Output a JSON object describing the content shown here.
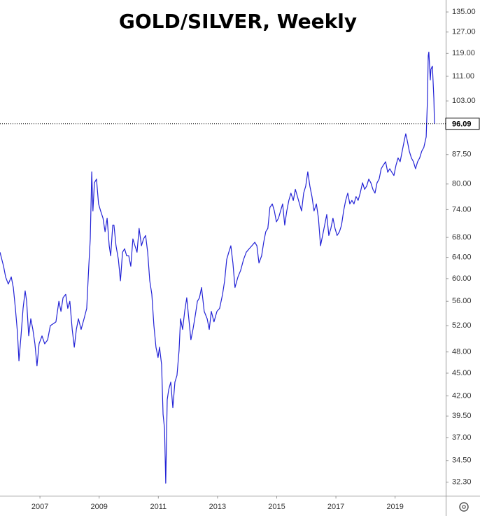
{
  "chart_data": {
    "type": "line",
    "title": "GOLD/SILVER, Weekly",
    "color": "#2323d6",
    "log_y": true,
    "x": [
      2005.65,
      2005.77,
      2005.84,
      2005.93,
      2006.03,
      2006.1,
      2006.17,
      2006.24,
      2006.29,
      2006.36,
      2006.43,
      2006.5,
      2006.55,
      2006.62,
      2006.69,
      2006.76,
      2006.83,
      2006.9,
      2006.97,
      2007.07,
      2007.16,
      2007.26,
      2007.35,
      2007.45,
      2007.54,
      2007.64,
      2007.71,
      2007.78,
      2007.87,
      2007.94,
      2008.01,
      2008.09,
      2008.16,
      2008.23,
      2008.3,
      2008.39,
      2008.49,
      2008.58,
      2008.65,
      2008.7,
      2008.75,
      2008.79,
      2008.84,
      2008.91,
      2008.98,
      2009.05,
      2009.13,
      2009.2,
      2009.27,
      2009.34,
      2009.39,
      2009.46,
      2009.5,
      2009.57,
      2009.65,
      2009.72,
      2009.79,
      2009.86,
      2009.93,
      2010.0,
      2010.07,
      2010.14,
      2010.21,
      2010.28,
      2010.35,
      2010.43,
      2010.5,
      2010.57,
      2010.64,
      2010.71,
      2010.78,
      2010.85,
      2010.92,
      2010.99,
      2011.04,
      2011.11,
      2011.16,
      2011.21,
      2011.25,
      2011.3,
      2011.35,
      2011.42,
      2011.49,
      2011.56,
      2011.63,
      2011.7,
      2011.75,
      2011.82,
      2011.89,
      2011.96,
      2012.03,
      2012.1,
      2012.17,
      2012.25,
      2012.32,
      2012.39,
      2012.46,
      2012.55,
      2012.65,
      2012.72,
      2012.79,
      2012.88,
      2012.98,
      2013.07,
      2013.17,
      2013.24,
      2013.31,
      2013.38,
      2013.45,
      2013.52,
      2013.59,
      2013.69,
      2013.78,
      2013.88,
      2013.97,
      2014.07,
      2014.16,
      2014.26,
      2014.33,
      2014.4,
      2014.49,
      2014.56,
      2014.63,
      2014.7,
      2014.77,
      2014.85,
      2014.92,
      2014.99,
      2015.06,
      2015.13,
      2015.2,
      2015.27,
      2015.34,
      2015.41,
      2015.48,
      2015.56,
      2015.63,
      2015.7,
      2015.77,
      2015.84,
      2015.91,
      2015.98,
      2016.05,
      2016.12,
      2016.19,
      2016.26,
      2016.34,
      2016.41,
      2016.48,
      2016.55,
      2016.62,
      2016.69,
      2016.76,
      2016.83,
      2016.9,
      2016.97,
      2017.04,
      2017.12,
      2017.19,
      2017.26,
      2017.33,
      2017.4,
      2017.47,
      2017.54,
      2017.61,
      2017.68,
      2017.75,
      2017.82,
      2017.9,
      2017.97,
      2018.04,
      2018.11,
      2018.18,
      2018.25,
      2018.32,
      2018.39,
      2018.46,
      2018.53,
      2018.6,
      2018.68,
      2018.75,
      2018.82,
      2018.89,
      2018.96,
      2019.03,
      2019.1,
      2019.17,
      2019.24,
      2019.31,
      2019.36,
      2019.41,
      2019.48,
      2019.55,
      2019.62,
      2019.69,
      2019.76,
      2019.83,
      2019.9,
      2019.97,
      2020.05,
      2020.09,
      2020.12,
      2020.14,
      2020.19,
      2020.21,
      2020.26,
      2020.31,
      2020.33
    ],
    "values": [
      65.0,
      62.3,
      60.3,
      59.0,
      60.3,
      58.4,
      54.8,
      50.9,
      46.7,
      50.4,
      54.8,
      57.8,
      56.0,
      50.4,
      53.1,
      51.4,
      49.2,
      46.0,
      49.2,
      50.4,
      49.2,
      49.8,
      52.0,
      52.3,
      52.6,
      56.0,
      54.3,
      56.6,
      57.2,
      54.8,
      56.0,
      51.4,
      48.7,
      51.4,
      53.1,
      51.4,
      53.1,
      54.8,
      62.3,
      67.7,
      83.0,
      73.7,
      80.3,
      81.2,
      75.3,
      73.7,
      72.1,
      69.2,
      72.1,
      66.3,
      64.3,
      70.6,
      70.6,
      66.3,
      63.6,
      59.6,
      65.0,
      65.7,
      64.3,
      64.3,
      62.3,
      67.7,
      66.3,
      65.0,
      69.9,
      66.3,
      67.7,
      68.4,
      65.0,
      59.6,
      57.2,
      52.0,
      48.7,
      47.2,
      48.7,
      46.2,
      39.7,
      38.0,
      32.2,
      41.5,
      42.8,
      43.8,
      40.5,
      43.8,
      44.7,
      48.2,
      53.1,
      51.4,
      54.3,
      56.6,
      53.1,
      49.8,
      51.4,
      53.7,
      56.0,
      56.6,
      58.4,
      54.3,
      53.1,
      51.4,
      54.3,
      52.6,
      54.3,
      54.8,
      57.2,
      59.6,
      63.6,
      65.0,
      66.3,
      62.9,
      58.4,
      60.3,
      61.5,
      63.6,
      65.0,
      65.7,
      66.3,
      67.0,
      66.3,
      62.9,
      64.3,
      67.0,
      69.2,
      69.9,
      74.5,
      75.3,
      73.7,
      71.3,
      72.1,
      73.7,
      75.3,
      70.6,
      73.7,
      76.1,
      77.8,
      76.1,
      78.7,
      77.0,
      75.3,
      73.7,
      77.8,
      79.5,
      83.0,
      79.5,
      77.0,
      73.7,
      75.3,
      72.1,
      66.3,
      68.4,
      70.6,
      72.9,
      68.4,
      69.9,
      72.1,
      69.9,
      68.4,
      69.2,
      70.6,
      73.7,
      76.1,
      77.8,
      75.3,
      76.1,
      75.3,
      77.0,
      76.1,
      77.8,
      80.3,
      78.7,
      79.5,
      81.2,
      80.3,
      78.7,
      77.8,
      80.3,
      81.2,
      83.8,
      84.7,
      85.6,
      82.9,
      83.8,
      82.9,
      82.1,
      84.7,
      86.6,
      85.6,
      88.4,
      91.3,
      93.2,
      91.3,
      88.4,
      86.6,
      85.6,
      83.8,
      85.6,
      86.6,
      88.4,
      89.4,
      92.3,
      102.6,
      118.2,
      119.5,
      109.8,
      113.4,
      114.5,
      103.7,
      96.09
    ],
    "last_value": 96.09,
    "xlim": [
      2005.65,
      2020.71
    ],
    "xticks": [
      2007,
      2009,
      2011,
      2013,
      2015,
      2017,
      2019
    ],
    "ylim": [
      31,
      140
    ],
    "yticks": [
      {
        "value": 135,
        "label": "135.00"
      },
      {
        "value": 127,
        "label": "127.00"
      },
      {
        "value": 119,
        "label": "119.00"
      },
      {
        "value": 111,
        "label": "111.00"
      },
      {
        "value": 103,
        "label": "103.00"
      },
      {
        "value": 87.5,
        "label": "87.50"
      },
      {
        "value": 80,
        "label": "80.00"
      },
      {
        "value": 74,
        "label": "74.00"
      },
      {
        "value": 68,
        "label": "68.00"
      },
      {
        "value": 64,
        "label": "64.00"
      },
      {
        "value": 60,
        "label": "60.00"
      },
      {
        "value": 56,
        "label": "56.00"
      },
      {
        "value": 52,
        "label": "52.00"
      },
      {
        "value": 48,
        "label": "48.00"
      },
      {
        "value": 45,
        "label": "45.00"
      },
      {
        "value": 42,
        "label": "42.00"
      },
      {
        "value": 39.5,
        "label": "39.50"
      },
      {
        "value": 37,
        "label": "37.00"
      },
      {
        "value": 34.5,
        "label": "34.50"
      },
      {
        "value": 32.3,
        "label": "32.30"
      }
    ]
  }
}
